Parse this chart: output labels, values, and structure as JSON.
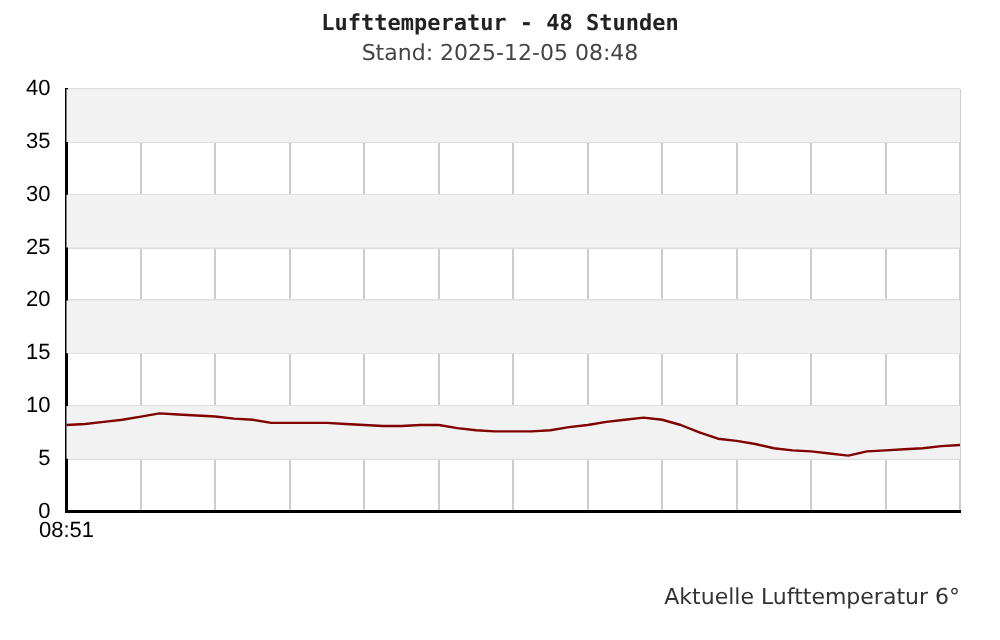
{
  "chart_data": {
    "type": "line",
    "title": "Lufttemperatur - 48 Stunden",
    "subtitle": "Stand: 2025-12-05 08:48",
    "annotations": [
      "Aktuelle Lufttemperatur 6°"
    ],
    "categories": [
      "08:51",
      null,
      null,
      null,
      null,
      null,
      null,
      null,
      null,
      null,
      null,
      null,
      null,
      null,
      null,
      null,
      null,
      null,
      null,
      null,
      null,
      null,
      null,
      null,
      null,
      null,
      null,
      null,
      null,
      null,
      null,
      null,
      null,
      null,
      null,
      null,
      null,
      null,
      null,
      null,
      null,
      null,
      null,
      null,
      null,
      null,
      null,
      null,
      null
    ],
    "series": [
      {
        "color": "#800000",
        "values": [
          8.2,
          8.3,
          8.5,
          8.7,
          9.0,
          9.3,
          9.2,
          9.1,
          9.0,
          8.8,
          8.7,
          8.4,
          8.4,
          8.4,
          8.4,
          8.3,
          8.2,
          8.1,
          8.1,
          8.2,
          8.2,
          7.9,
          7.7,
          7.6,
          7.6,
          7.6,
          7.7,
          8.0,
          8.2,
          8.5,
          8.7,
          8.9,
          8.7,
          8.2,
          7.5,
          6.9,
          6.7,
          6.4,
          6.0,
          5.8,
          5.7,
          5.5,
          5.3,
          5.7,
          5.8,
          5.9,
          6.0,
          6.2,
          6.3
        ]
      }
    ],
    "ylim": [
      0,
      40
    ],
    "yticks": [
      0,
      5,
      10,
      15,
      20,
      25,
      30,
      35,
      40
    ],
    "bands": [
      {
        "axis": "y",
        "from": 5,
        "to": 10,
        "color": "#f2f2f2"
      },
      {
        "axis": "y",
        "from": 15,
        "to": 20,
        "color": "#f2f2f2"
      },
      {
        "axis": "y",
        "from": 25,
        "to": 30,
        "color": "#f2f2f2"
      },
      {
        "axis": "y",
        "from": 35,
        "to": 40,
        "color": "#f2f2f2"
      }
    ],
    "grid": true,
    "legend": false,
    "marker": "none",
    "line_style": "solid"
  }
}
